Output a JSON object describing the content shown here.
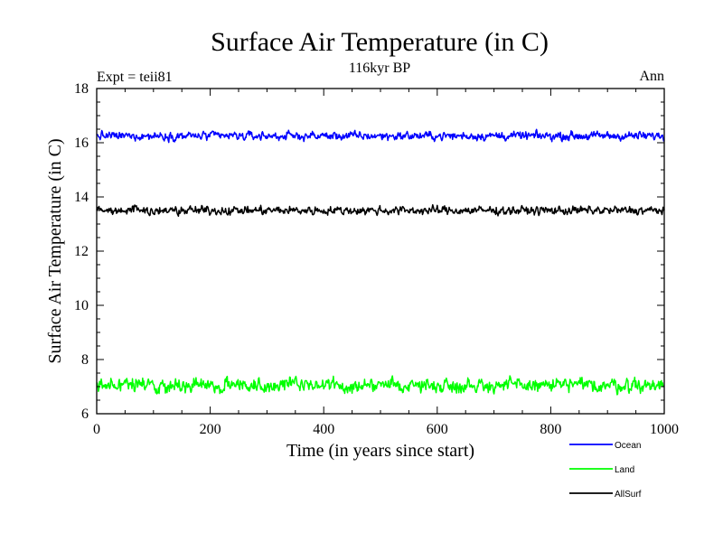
{
  "chart_data": {
    "type": "line",
    "title": "Surface Air Temperature (in C)",
    "subtitle": "116kyr BP",
    "annotation_left": "Expt = teii81",
    "annotation_right": "Ann",
    "xlabel": "Time (in years since start)",
    "ylabel": "Surface Air Temperature (in C)",
    "xlim": [
      0,
      1000
    ],
    "ylim": [
      6,
      18
    ],
    "x_ticks": [
      0,
      200,
      400,
      600,
      800,
      1000
    ],
    "x_tick_labels": [
      "0",
      "200",
      "400",
      "600",
      "800",
      "1000"
    ],
    "y_ticks": [
      6,
      8,
      10,
      12,
      14,
      16,
      18
    ],
    "y_tick_labels": [
      "6",
      "8",
      "10",
      "12",
      "14",
      "16",
      "18"
    ],
    "grid": false,
    "legend_position": "bottom-right",
    "series": [
      {
        "name": "Ocean",
        "color": "#0000ff",
        "mean": 16.25,
        "amplitude": 0.12,
        "x_range": [
          0,
          1000
        ]
      },
      {
        "name": "Land",
        "color": "#00ff00",
        "mean": 7.05,
        "amplitude": 0.2,
        "x_range": [
          0,
          1000
        ]
      },
      {
        "name": "AllSurf",
        "color": "#000000",
        "mean": 13.5,
        "amplitude": 0.12,
        "x_range": [
          0,
          1000
        ]
      }
    ]
  }
}
